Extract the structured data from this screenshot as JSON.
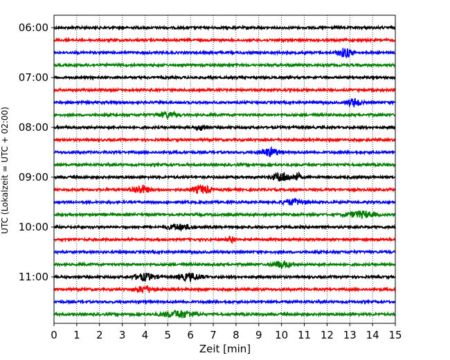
{
  "chart_data": {
    "type": "line",
    "xlabel": "Zeit  [min]",
    "ylabel": "UTC (Lokalzeit = UTC + 02:00)",
    "xlim": [
      0,
      15
    ],
    "x_ticks": [
      0,
      1,
      2,
      3,
      4,
      5,
      6,
      7,
      8,
      9,
      10,
      11,
      12,
      13,
      14,
      15
    ],
    "y_time_ticks": [
      "06:00",
      "07:00",
      "08:00",
      "09:00",
      "10:00",
      "11:00"
    ],
    "trace_start": "06:00",
    "trace_interval_minutes": 15,
    "trace_count": 24,
    "grid": "vertical-dotted",
    "legend": "none",
    "trace_colors": [
      "#000000",
      "#ff0000",
      "#0000ff",
      "#008000"
    ],
    "bursts": [
      {
        "trace": 2,
        "minute": 12.8,
        "width": 0.6,
        "amplitude": 0.35
      },
      {
        "trace": 6,
        "minute": 13.2,
        "width": 0.6,
        "amplitude": 0.3
      },
      {
        "trace": 7,
        "minute": 5.0,
        "width": 0.8,
        "amplitude": 0.2
      },
      {
        "trace": 8,
        "minute": 6.5,
        "width": 0.5,
        "amplitude": 0.2
      },
      {
        "trace": 10,
        "minute": 9.5,
        "width": 0.8,
        "amplitude": 0.3
      },
      {
        "trace": 12,
        "minute": 10.0,
        "width": 0.8,
        "amplitude": 0.35
      },
      {
        "trace": 12,
        "minute": 10.7,
        "width": 0.3,
        "amplitude": 0.3
      },
      {
        "trace": 13,
        "minute": 3.8,
        "width": 0.8,
        "amplitude": 0.3
      },
      {
        "trace": 13,
        "minute": 6.5,
        "width": 0.8,
        "amplitude": 0.3
      },
      {
        "trace": 14,
        "minute": 10.5,
        "width": 1.0,
        "amplitude": 0.2
      },
      {
        "trace": 15,
        "minute": 13.5,
        "width": 1.2,
        "amplitude": 0.25
      },
      {
        "trace": 16,
        "minute": 5.5,
        "width": 1.0,
        "amplitude": 0.2
      },
      {
        "trace": 17,
        "minute": 7.8,
        "width": 0.4,
        "amplitude": 0.2
      },
      {
        "trace": 19,
        "minute": 10.0,
        "width": 0.8,
        "amplitude": 0.25
      },
      {
        "trace": 20,
        "minute": 4.0,
        "width": 1.0,
        "amplitude": 0.25
      },
      {
        "trace": 20,
        "minute": 6.0,
        "width": 1.0,
        "amplitude": 0.25
      },
      {
        "trace": 21,
        "minute": 4.0,
        "width": 0.8,
        "amplitude": 0.25
      },
      {
        "trace": 23,
        "minute": 5.5,
        "width": 1.5,
        "amplitude": 0.25
      }
    ]
  }
}
